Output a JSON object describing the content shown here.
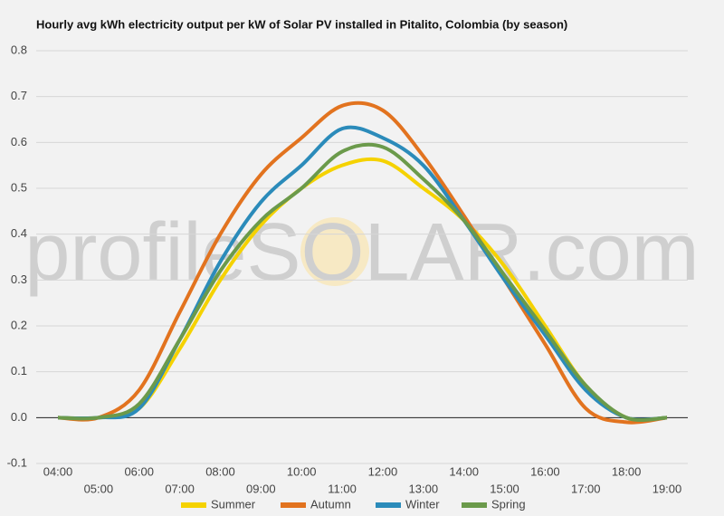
{
  "chart_data": {
    "type": "line",
    "title": "Hourly avg kWh electricity output per kW of Solar PV installed in Pitalito, Colombia (by season)",
    "watermark": "profileSOLAR.com",
    "categories": [
      "04:00",
      "05:00",
      "06:00",
      "07:00",
      "08:00",
      "09:00",
      "10:00",
      "11:00",
      "12:00",
      "13:00",
      "14:00",
      "15:00",
      "16:00",
      "17:00",
      "18:00",
      "19:00"
    ],
    "series": [
      {
        "name": "Summer",
        "color": "#f5d200",
        "values": [
          0,
          0,
          0.02,
          0.15,
          0.3,
          0.42,
          0.5,
          0.55,
          0.56,
          0.5,
          0.43,
          0.33,
          0.2,
          0.07,
          0,
          0
        ]
      },
      {
        "name": "Autumn",
        "color": "#e2731f",
        "values": [
          0,
          0,
          0.06,
          0.23,
          0.4,
          0.53,
          0.61,
          0.68,
          0.67,
          0.57,
          0.44,
          0.3,
          0.16,
          0.02,
          -0.01,
          0
        ]
      },
      {
        "name": "Winter",
        "color": "#2b8bba",
        "values": [
          0,
          0,
          0.02,
          0.17,
          0.34,
          0.47,
          0.55,
          0.63,
          0.61,
          0.55,
          0.43,
          0.3,
          0.18,
          0.06,
          0,
          0
        ]
      },
      {
        "name": "Spring",
        "color": "#6b9a4b",
        "values": [
          0,
          0,
          0.03,
          0.17,
          0.32,
          0.43,
          0.5,
          0.58,
          0.59,
          0.52,
          0.43,
          0.31,
          0.19,
          0.07,
          0,
          0
        ]
      }
    ],
    "ylim": [
      -0.1,
      0.8
    ],
    "yticks": [
      -0.1,
      {
        "value": 0,
        "label": "0.0"
      },
      0.1,
      0.2,
      0.3,
      0.4,
      0.5,
      0.6,
      0.7,
      0.8
    ],
    "grid": true,
    "legend": "bottom"
  }
}
